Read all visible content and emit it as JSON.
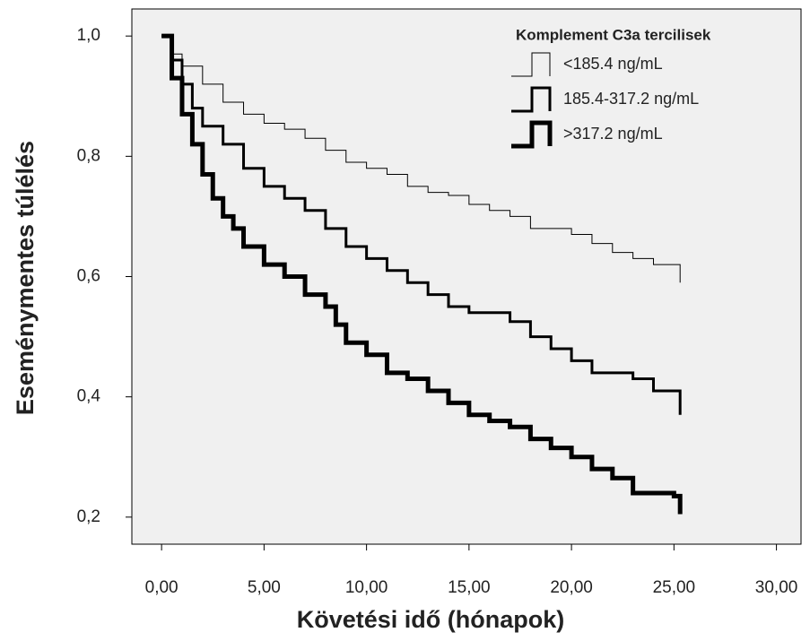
{
  "chart_data": {
    "type": "line",
    "drawstyle": "steps-post",
    "x_label": "Követési idő (hónapok)",
    "y_label": "Eseménymentes túlélés",
    "legend_title": "Komplement C3a tercilisek",
    "legend_position": "upper right",
    "xlim": [
      -1.45,
      31.2
    ],
    "ylim": [
      0.155,
      1.045
    ],
    "xticks": [
      {
        "value": 0,
        "label": "0,00"
      },
      {
        "value": 5,
        "label": "5,00"
      },
      {
        "value": 10,
        "label": "10,00"
      },
      {
        "value": 15,
        "label": "15,00"
      },
      {
        "value": 20,
        "label": "20,00"
      },
      {
        "value": 25,
        "label": "25,00"
      },
      {
        "value": 30,
        "label": "30,00"
      }
    ],
    "yticks": [
      {
        "value": 0.2,
        "label": "0,2"
      },
      {
        "value": 0.4,
        "label": "0,4"
      },
      {
        "value": 0.6,
        "label": "0,6"
      },
      {
        "value": 0.8,
        "label": "0,8"
      },
      {
        "value": 1.0,
        "label": "1,0"
      }
    ],
    "series": [
      {
        "name": "<185.4 ng/mL",
        "color": "#000000",
        "width": 1,
        "x": [
          0,
          0.5,
          1,
          2,
          3,
          4,
          5,
          6,
          7,
          8,
          9,
          10,
          11,
          12,
          13,
          14,
          15,
          16,
          17,
          18,
          20,
          21,
          22,
          23,
          24,
          25.3
        ],
        "values": [
          1.0,
          0.97,
          0.95,
          0.92,
          0.89,
          0.87,
          0.855,
          0.845,
          0.83,
          0.81,
          0.79,
          0.78,
          0.77,
          0.75,
          0.74,
          0.735,
          0.72,
          0.71,
          0.7,
          0.68,
          0.67,
          0.655,
          0.64,
          0.63,
          0.62,
          0.59
        ]
      },
      {
        "name": "185.4-317.2 ng/mL",
        "color": "#000000",
        "width": 3,
        "x": [
          0,
          0.5,
          1,
          1.5,
          2,
          3,
          4,
          5,
          6,
          7,
          8,
          9,
          10,
          11,
          12,
          13,
          14,
          15,
          17,
          18,
          19,
          20,
          21,
          23,
          24,
          25.3
        ],
        "values": [
          1.0,
          0.96,
          0.92,
          0.88,
          0.85,
          0.82,
          0.78,
          0.75,
          0.73,
          0.71,
          0.68,
          0.65,
          0.63,
          0.61,
          0.59,
          0.57,
          0.55,
          0.54,
          0.525,
          0.5,
          0.48,
          0.46,
          0.44,
          0.43,
          0.41,
          0.37
        ]
      },
      {
        "name": ">317.2 ng/mL",
        "color": "#000000",
        "width": 5,
        "x": [
          0,
          0.5,
          1,
          1.5,
          2,
          2.5,
          3,
          3.5,
          4,
          5,
          6,
          7,
          8,
          8.5,
          9,
          10,
          11,
          12,
          13,
          14,
          15,
          16,
          17,
          18,
          19,
          20,
          21,
          22,
          23,
          25,
          25.3
        ],
        "values": [
          1.0,
          0.93,
          0.87,
          0.82,
          0.77,
          0.73,
          0.7,
          0.68,
          0.65,
          0.62,
          0.6,
          0.57,
          0.55,
          0.52,
          0.49,
          0.47,
          0.44,
          0.43,
          0.41,
          0.39,
          0.37,
          0.36,
          0.35,
          0.33,
          0.315,
          0.3,
          0.28,
          0.265,
          0.24,
          0.235,
          0.205
        ]
      }
    ]
  }
}
